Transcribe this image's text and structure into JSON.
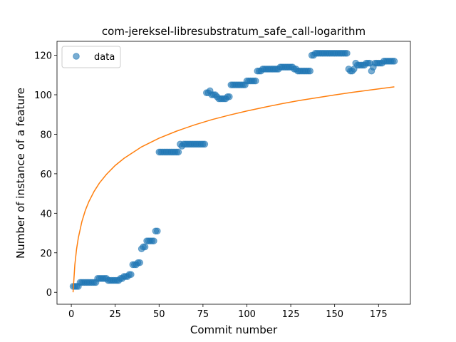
{
  "chart_data": {
    "type": "scatter",
    "title": "com-jereksel-libresubstratum_safe_call-logarithm",
    "xlabel": "Commit number",
    "ylabel": "Number of instance of a feature",
    "xlim": [
      -8.15,
      193.15
    ],
    "ylim": [
      -6.05,
      127.05
    ],
    "xticks": [
      0,
      25,
      50,
      75,
      100,
      125,
      150,
      175
    ],
    "yticks": [
      0,
      20,
      40,
      60,
      80,
      100,
      120
    ],
    "grid": false,
    "legend": "upper left",
    "series": [
      {
        "name": "data",
        "type": "scatter",
        "color": "#1f77b4",
        "x": [
          1,
          2,
          3,
          4,
          5,
          6,
          7,
          8,
          9,
          10,
          11,
          12,
          13,
          14,
          15,
          16,
          17,
          18,
          19,
          20,
          21,
          22,
          23,
          24,
          25,
          26,
          27,
          28,
          29,
          30,
          31,
          32,
          33,
          34,
          35,
          36,
          37,
          38,
          39,
          40,
          41,
          42,
          43,
          44,
          45,
          46,
          47,
          48,
          49,
          50,
          51,
          52,
          53,
          54,
          55,
          56,
          57,
          58,
          59,
          60,
          61,
          62,
          63,
          64,
          65,
          66,
          67,
          68,
          69,
          70,
          71,
          72,
          73,
          74,
          75,
          76,
          77,
          78,
          79,
          80,
          81,
          82,
          83,
          84,
          85,
          86,
          87,
          88,
          89,
          90,
          91,
          92,
          93,
          94,
          95,
          96,
          97,
          98,
          99,
          100,
          101,
          102,
          103,
          104,
          105,
          106,
          107,
          108,
          109,
          110,
          111,
          112,
          113,
          114,
          115,
          116,
          117,
          118,
          119,
          120,
          121,
          122,
          123,
          124,
          125,
          126,
          127,
          128,
          129,
          130,
          131,
          132,
          133,
          134,
          135,
          136,
          137,
          138,
          139,
          140,
          141,
          142,
          143,
          144,
          145,
          146,
          147,
          148,
          149,
          150,
          151,
          152,
          153,
          154,
          155,
          156,
          157,
          158,
          159,
          160,
          161,
          162,
          163,
          164,
          165,
          166,
          167,
          168,
          169,
          170,
          171,
          172,
          173,
          174,
          175,
          176,
          177,
          178,
          179,
          180,
          181,
          182,
          183,
          184
        ],
        "values": [
          3,
          3,
          3,
          3,
          5,
          5,
          5,
          5,
          5,
          5,
          5,
          5,
          5,
          5,
          7,
          7,
          7,
          7,
          7,
          7,
          6,
          6,
          6,
          6,
          6,
          6,
          6,
          7,
          7,
          8,
          8,
          8,
          9,
          9,
          14,
          14,
          14,
          15,
          15,
          22,
          23,
          23,
          26,
          26,
          26,
          26,
          26,
          31,
          31,
          71,
          71,
          71,
          71,
          71,
          71,
          71,
          71,
          71,
          71,
          71,
          71,
          75,
          74,
          75,
          75,
          75,
          75,
          75,
          75,
          75,
          75,
          75,
          75,
          75,
          75,
          75,
          101,
          101,
          102,
          100,
          100,
          100,
          99,
          98,
          98,
          98,
          98,
          98,
          99,
          99,
          105,
          105,
          105,
          105,
          105,
          105,
          105,
          105,
          105,
          107,
          107,
          107,
          107,
          107,
          107,
          112,
          112,
          112,
          113,
          113,
          113,
          113,
          113,
          113,
          113,
          113,
          113,
          113,
          114,
          114,
          114,
          114,
          114,
          114,
          114,
          114,
          113,
          113,
          112,
          112,
          112,
          112,
          112,
          112,
          112,
          112,
          120,
          120,
          121,
          121,
          121,
          121,
          121,
          121,
          121,
          121,
          121,
          121,
          121,
          121,
          121,
          121,
          121,
          121,
          121,
          121,
          121,
          113,
          112,
          112,
          113,
          116,
          115,
          115,
          115,
          115,
          115,
          116,
          116,
          116,
          112,
          114,
          116,
          116,
          116,
          116,
          116,
          117,
          117,
          117,
          117,
          117,
          117,
          117
        ]
      },
      {
        "type": "line",
        "color": "#ff7f0e",
        "x": [
          1,
          2,
          3,
          4,
          6,
          8,
          10,
          13,
          16,
          20,
          25,
          30,
          40,
          50,
          60,
          70,
          80,
          90,
          100,
          110,
          120,
          130,
          140,
          150,
          160,
          170,
          184
        ],
        "values": [
          0,
          13.8,
          21.9,
          27.6,
          35.7,
          41.5,
          45.9,
          51.1,
          55.3,
          59.7,
          64.2,
          67.8,
          73.6,
          78.0,
          81.6,
          84.7,
          87.4,
          89.7,
          91.8,
          93.7,
          95.5,
          97.1,
          98.5,
          99.9,
          101.2,
          102.4,
          104.0
        ]
      }
    ]
  }
}
